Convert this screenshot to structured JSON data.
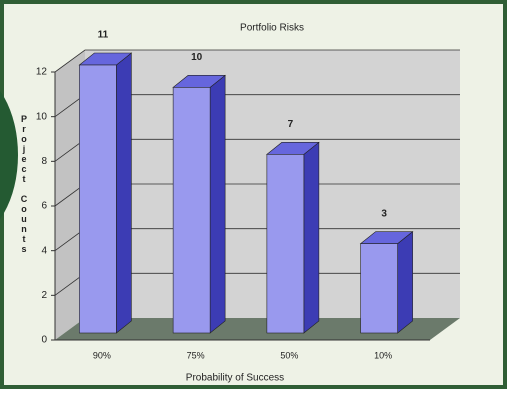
{
  "chart_data": {
    "type": "bar",
    "title": "Portfolio Risks",
    "x_label": "Probability of Success",
    "y_label": "Project Counts",
    "categories": [
      "90%",
      "75%",
      "50%",
      "10%"
    ],
    "values": [
      11,
      10,
      7,
      3
    ],
    "color": "#9999ee",
    "ylim": [
      0,
      12
    ],
    "yticks": [
      0,
      2,
      4,
      6,
      8,
      10,
      12
    ],
    "grid": true
  }
}
